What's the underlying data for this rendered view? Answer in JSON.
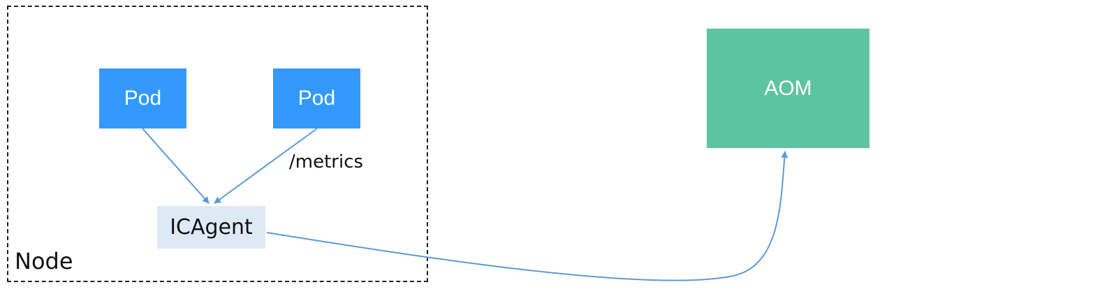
{
  "node": {
    "label": "Node"
  },
  "pods": [
    {
      "label": "Pod"
    },
    {
      "label": "Pod"
    }
  ],
  "icagent": {
    "label": "ICAgent"
  },
  "aom": {
    "label": "AOM"
  },
  "edge_label": "/metrics",
  "colors": {
    "pod": "#3399ff",
    "icagent": "#dde9f5",
    "aom": "#5cc4a0",
    "connector": "#5b9bd5"
  }
}
